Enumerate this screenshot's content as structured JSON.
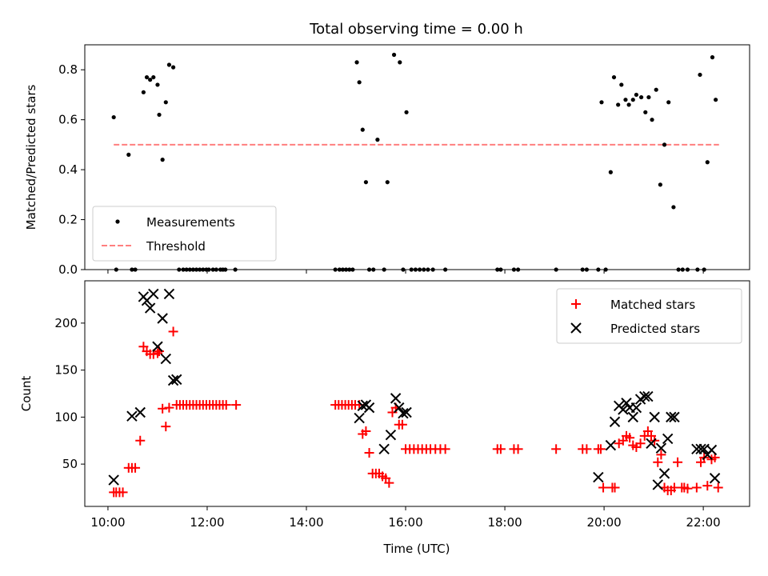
{
  "chart_data": [
    {
      "type": "scatter",
      "title": "Total observing time = 0.00 h",
      "xlabel": "",
      "ylabel": "Matched/Predicted stars",
      "ylim": [
        0,
        0.9
      ],
      "xlim": [
        "09:32",
        "22:56"
      ],
      "yticks": [
        "0.0",
        "0.2",
        "0.4",
        "0.6",
        "0.8"
      ],
      "legend": {
        "position": "lower-left",
        "entries": [
          "Measurements",
          "Threshold"
        ]
      },
      "threshold": {
        "name": "Threshold",
        "value": 0.5,
        "x_range": [
          "10:07",
          "22:19"
        ],
        "color": "#ff7f7f",
        "style": "dashed"
      },
      "series": [
        {
          "name": "Measurements",
          "color": "#000000",
          "x": [
            "10:07",
            "10:10",
            "10:25",
            "10:29",
            "10:33",
            "10:43",
            "10:47",
            "10:51",
            "10:55",
            "11:00",
            "11:02",
            "11:06",
            "11:10",
            "11:14",
            "11:19",
            "11:26",
            "11:31",
            "11:35",
            "11:39",
            "11:43",
            "11:47",
            "11:51",
            "11:55",
            "11:59",
            "12:02",
            "12:07",
            "12:11",
            "12:16",
            "12:19",
            "12:22",
            "12:34",
            "14:35",
            "14:40",
            "14:44",
            "14:48",
            "14:52",
            "14:56",
            "15:01",
            "15:04",
            "15:08",
            "15:12",
            "15:16",
            "15:21",
            "15:26",
            "15:34",
            "15:38",
            "15:46",
            "15:53",
            "15:57",
            "16:01",
            "16:07",
            "16:12",
            "16:17",
            "16:22",
            "16:27",
            "16:33",
            "16:48",
            "17:51",
            "17:55",
            "18:11",
            "18:16",
            "19:02",
            "19:34",
            "19:39",
            "19:53",
            "19:57",
            "20:02",
            "20:08",
            "20:12",
            "20:17",
            "20:21",
            "20:26",
            "20:30",
            "20:35",
            "20:39",
            "20:45",
            "20:50",
            "20:54",
            "20:58",
            "21:03",
            "21:08",
            "21:13",
            "21:18",
            "21:24",
            "21:30",
            "21:35",
            "21:41",
            "21:53",
            "21:56",
            "22:01",
            "22:05",
            "22:11",
            "22:15"
          ],
          "y": [
            0.61,
            0.0,
            0.46,
            0.0,
            0.0,
            0.71,
            0.77,
            0.76,
            0.77,
            0.74,
            0.62,
            0.44,
            0.67,
            0.82,
            0.81,
            0.0,
            0.0,
            0.0,
            0.0,
            0.0,
            0.0,
            0.0,
            0.0,
            0.0,
            0.0,
            0.0,
            0.0,
            0.0,
            0.0,
            0.0,
            0.0,
            0.0,
            0.0,
            0.0,
            0.0,
            0.0,
            0.0,
            0.83,
            0.75,
            0.56,
            0.35,
            0.0,
            0.0,
            0.52,
            0.0,
            0.35,
            0.86,
            0.83,
            0.0,
            0.63,
            0.0,
            0.0,
            0.0,
            0.0,
            0.0,
            0.0,
            0.0,
            0.0,
            0.0,
            0.0,
            0.0,
            0.0,
            0.0,
            0.0,
            0.0,
            0.67,
            0.0,
            0.39,
            0.77,
            0.66,
            0.74,
            0.68,
            0.66,
            0.68,
            0.7,
            0.69,
            0.63,
            0.69,
            0.6,
            0.72,
            0.34,
            0.5,
            0.67,
            0.25,
            0.0,
            0.0,
            0.0,
            0.0,
            0.78,
            0.0,
            0.43,
            0.85,
            0.68
          ]
        }
      ]
    },
    {
      "type": "scatter",
      "title": "",
      "xlabel": "Time (UTC)",
      "ylabel": "Count",
      "ylim": [
        5,
        245
      ],
      "xlim": [
        "09:32",
        "22:56"
      ],
      "yticks": [
        "50",
        "100",
        "150",
        "200"
      ],
      "xticks": [
        "10:00",
        "12:00",
        "14:00",
        "16:00",
        "18:00",
        "20:00",
        "22:00"
      ],
      "legend": {
        "position": "upper-right",
        "entries": [
          "Matched stars",
          "Predicted stars"
        ]
      },
      "series": [
        {
          "name": "Matched stars",
          "color": "#ff0000",
          "marker": "+",
          "x": [
            "10:07",
            "10:10",
            "10:14",
            "10:18",
            "10:25",
            "10:29",
            "10:33",
            "10:39",
            "10:43",
            "10:47",
            "10:51",
            "10:55",
            "11:00",
            "11:02",
            "11:06",
            "11:10",
            "11:14",
            "11:19",
            "11:23",
            "11:27",
            "11:31",
            "11:35",
            "11:39",
            "11:43",
            "11:47",
            "11:51",
            "11:55",
            "11:59",
            "12:03",
            "12:07",
            "12:11",
            "12:15",
            "12:19",
            "12:23",
            "12:35",
            "14:35",
            "14:39",
            "14:43",
            "14:47",
            "14:51",
            "14:55",
            "14:59",
            "15:04",
            "15:08",
            "15:12",
            "15:16",
            "15:20",
            "15:24",
            "15:28",
            "15:32",
            "15:36",
            "15:40",
            "15:44",
            "15:48",
            "15:52",
            "15:56",
            "16:00",
            "16:05",
            "16:10",
            "16:15",
            "16:20",
            "16:25",
            "16:30",
            "16:36",
            "16:42",
            "16:48",
            "17:51",
            "17:55",
            "18:11",
            "18:16",
            "19:02",
            "19:34",
            "19:39",
            "19:53",
            "19:56",
            "19:59",
            "20:10",
            "20:13",
            "20:18",
            "20:23",
            "20:27",
            "20:31",
            "20:35",
            "20:39",
            "20:44",
            "20:49",
            "20:53",
            "20:57",
            "21:01",
            "21:05",
            "21:09",
            "21:13",
            "21:17",
            "21:21",
            "21:25",
            "21:29",
            "21:34",
            "21:37",
            "21:41",
            "21:52",
            "21:57",
            "22:01",
            "22:05",
            "22:10",
            "22:14",
            "22:18"
          ],
          "y": [
            20,
            20,
            20,
            20,
            46,
            46,
            46,
            75,
            175,
            170,
            167,
            167,
            168,
            170,
            109,
            90,
            110,
            191,
            113,
            113,
            113,
            113,
            113,
            113,
            113,
            113,
            113,
            113,
            113,
            113,
            113,
            113,
            113,
            113,
            113,
            113,
            113,
            113,
            113,
            113,
            113,
            113,
            113,
            82,
            85,
            62,
            40,
            40,
            40,
            37,
            35,
            30,
            105,
            110,
            92,
            92,
            66,
            66,
            66,
            66,
            66,
            66,
            66,
            66,
            66,
            66,
            66,
            66,
            66,
            66,
            66,
            66,
            66,
            66,
            66,
            25,
            25,
            25,
            72,
            75,
            80,
            78,
            70,
            68,
            72,
            80,
            85,
            80,
            75,
            52,
            60,
            25,
            22,
            22,
            25,
            52,
            25,
            25,
            24,
            25,
            52,
            57,
            27,
            55,
            57,
            25
          ],
          "note": ""
        },
        {
          "name": "Predicted stars",
          "color": "#000000",
          "marker": "x",
          "x": [
            "10:07",
            "10:29",
            "10:39",
            "10:43",
            "10:47",
            "10:51",
            "10:55",
            "11:00",
            "11:06",
            "11:10",
            "11:14",
            "11:19",
            "11:23",
            "15:04",
            "15:08",
            "15:12",
            "15:16",
            "15:34",
            "15:42",
            "15:48",
            "15:52",
            "15:57",
            "16:01",
            "19:53",
            "20:08",
            "20:13",
            "20:18",
            "20:23",
            "20:27",
            "20:31",
            "20:35",
            "20:39",
            "20:44",
            "20:49",
            "20:53",
            "20:57",
            "21:01",
            "21:05",
            "21:09",
            "21:13",
            "21:17",
            "21:21",
            "21:25",
            "21:52",
            "21:57",
            "22:01",
            "22:05",
            "22:10",
            "22:14"
          ],
          "y": [
            33,
            101,
            105,
            228,
            224,
            216,
            231,
            175,
            205,
            162,
            231,
            139,
            140,
            99,
            112,
            113,
            110,
            66,
            81,
            120,
            110,
            104,
            105,
            36,
            70,
            95,
            112,
            108,
            115,
            110,
            100,
            110,
            119,
            122,
            122,
            72,
            100,
            28,
            67,
            40,
            77,
            100,
            100,
            66,
            66,
            66,
            60,
            65,
            35
          ]
        }
      ]
    }
  ]
}
